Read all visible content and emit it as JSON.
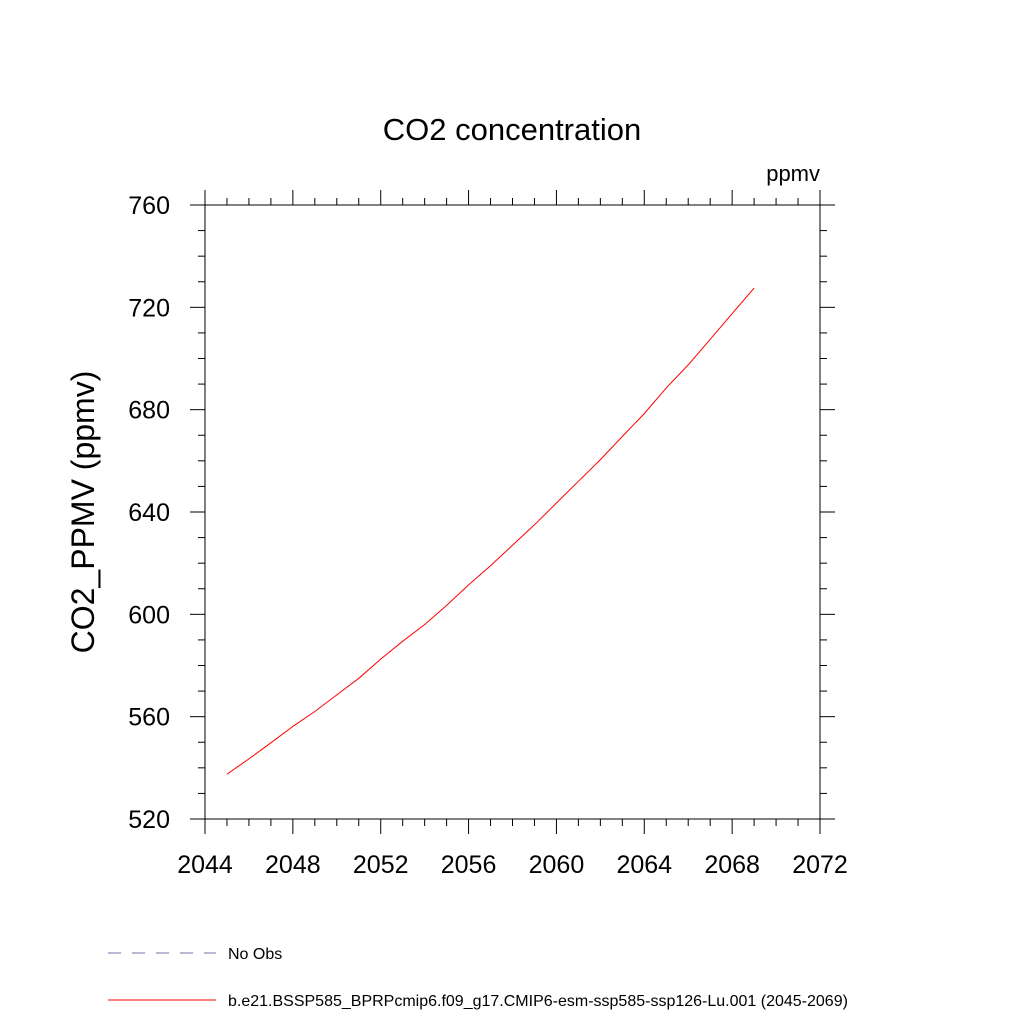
{
  "chart_data": {
    "type": "line",
    "title": "CO2 concentration",
    "units": "ppmv",
    "ylabel": "CO2_PPMV  (ppmv)",
    "xlabel": "",
    "xlim": [
      2044,
      2072
    ],
    "ylim": [
      520,
      760
    ],
    "xticks": [
      2044,
      2048,
      2052,
      2056,
      2060,
      2064,
      2068,
      2072
    ],
    "yticks": [
      520,
      560,
      600,
      640,
      680,
      720,
      760
    ],
    "grid": false,
    "legend_position": "bottom",
    "series": [
      {
        "name": "b.e21.BSSP585_BPRPcmip6.f09_g17.CMIP6-esm-ssp585-ssp126-Lu.001 (2045-2069)",
        "color": "#ff0000",
        "style": "solid",
        "x": [
          2045,
          2046,
          2047,
          2048,
          2049,
          2050,
          2051,
          2052,
          2053,
          2054,
          2055,
          2056,
          2057,
          2058,
          2059,
          2060,
          2061,
          2062,
          2063,
          2064,
          2065,
          2066,
          2067,
          2068,
          2069
        ],
        "y": [
          537.5,
          543.5,
          549.8,
          556.2,
          562.0,
          568.5,
          575.0,
          582.5,
          589.5,
          596.0,
          603.5,
          611.5,
          619.0,
          627.0,
          635.0,
          643.5,
          652.0,
          660.5,
          669.5,
          678.5,
          688.5,
          697.5,
          707.5,
          717.5,
          727.5
        ]
      },
      {
        "name": "No Obs",
        "color": "#7d6fa8",
        "style": "dashed",
        "x": [],
        "y": []
      }
    ]
  }
}
